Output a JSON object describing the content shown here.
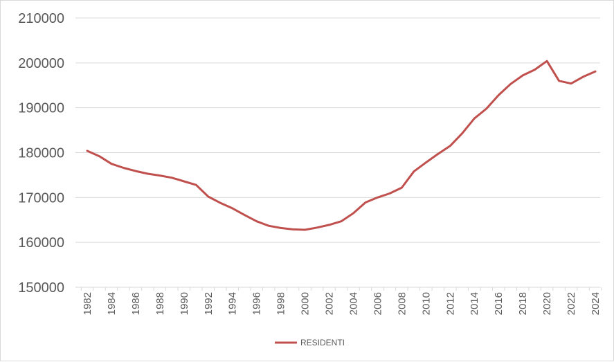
{
  "chart_data": {
    "type": "line",
    "title": "",
    "xlabel": "",
    "ylabel": "",
    "ylim": [
      150000,
      210000
    ],
    "yticks": [
      150000,
      160000,
      170000,
      180000,
      190000,
      200000,
      210000
    ],
    "ytick_labels": [
      "150000",
      "160000",
      "170000",
      "180000",
      "190000",
      "200000",
      "210000"
    ],
    "x": [
      1982,
      1983,
      1984,
      1985,
      1986,
      1987,
      1988,
      1989,
      1990,
      1991,
      1992,
      1993,
      1994,
      1995,
      1996,
      1997,
      1998,
      1999,
      2000,
      2001,
      2002,
      2003,
      2004,
      2005,
      2006,
      2007,
      2008,
      2009,
      2010,
      2011,
      2012,
      2013,
      2014,
      2015,
      2016,
      2017,
      2018,
      2019,
      2020,
      2021,
      2022,
      2023,
      2024
    ],
    "xtick_labels": [
      "1982",
      "1984",
      "1986",
      "1988",
      "1990",
      "1992",
      "1994",
      "1996",
      "1998",
      "2000",
      "2002",
      "2004",
      "2006",
      "2008",
      "2010",
      "2012",
      "2014",
      "2016",
      "2018",
      "2020",
      "2022",
      "2024"
    ],
    "grid": true,
    "legend_position": "bottom",
    "series": [
      {
        "name": "RESIDENTI",
        "color": "#c0504d",
        "values": [
          180400,
          179200,
          177500,
          176600,
          175900,
          175300,
          174900,
          174400,
          173600,
          172800,
          170200,
          168800,
          167600,
          166100,
          164700,
          163700,
          163200,
          162900,
          162800,
          163300,
          163900,
          164700,
          166500,
          168900,
          170000,
          170900,
          172200,
          175800,
          177800,
          179700,
          181500,
          184300,
          187600,
          189800,
          192800,
          195300,
          197200,
          198500,
          200400,
          196000,
          195400,
          196900,
          198100
        ]
      }
    ]
  }
}
